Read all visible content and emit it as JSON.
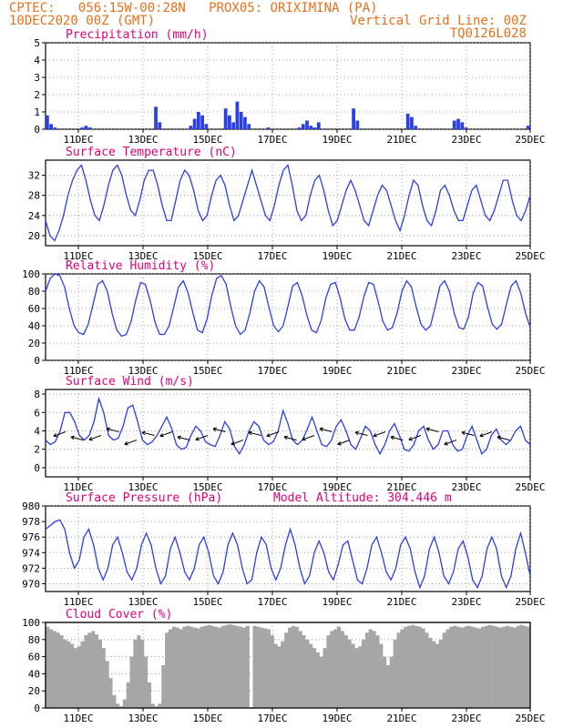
{
  "header": {
    "left_line1": "CPTEC:   056:15W-00:28N   PROX05: ORIXIMINA (PA)",
    "left_line2": "10DEC2020 00Z (GMT)",
    "right_line1": "Vertical Grid Line: 00Z",
    "right_line2": "TQ0126L028"
  },
  "x_ticks": [
    "11DEC",
    "13DEC",
    "15DEC",
    "17DEC",
    "19DEC",
    "21DEC",
    "23DEC",
    "25DEC"
  ],
  "chart_data": [
    {
      "type": "bar",
      "title": "Precipitation (mm/h)",
      "ylim": [
        0,
        5
      ],
      "yticks": [
        0,
        1,
        2,
        3,
        4,
        5
      ],
      "color": "#2b3fe6",
      "values": [
        0.8,
        0.3,
        0.1,
        0,
        0,
        0,
        0,
        0,
        0,
        0.1,
        0.2,
        0.1,
        0,
        0,
        0,
        0,
        0,
        0,
        0,
        0,
        0,
        0,
        0,
        0,
        0,
        0,
        0,
        0,
        1.3,
        0.4,
        0,
        0,
        0,
        0,
        0,
        0,
        0,
        0.2,
        0.6,
        1.0,
        0.8,
        0.3,
        0,
        0,
        0,
        0,
        1.2,
        0.8,
        0.4,
        1.6,
        1.0,
        0.7,
        0.3,
        0,
        0,
        0,
        0,
        0.1,
        0,
        0,
        0,
        0,
        0,
        0,
        0,
        0.1,
        0.3,
        0.5,
        0.2,
        0.1,
        0.4,
        0,
        0,
        0,
        0,
        0,
        0,
        0,
        0,
        1.2,
        0.5,
        0,
        0,
        0,
        0,
        0,
        0,
        0,
        0,
        0,
        0,
        0,
        0,
        0.9,
        0.7,
        0.2,
        0,
        0,
        0,
        0,
        0,
        0,
        0,
        0,
        0,
        0.5,
        0.6,
        0.4,
        0.1,
        0,
        0,
        0,
        0,
        0,
        0,
        0,
        0,
        0,
        0,
        0,
        0,
        0,
        0,
        0,
        0.2
      ]
    },
    {
      "type": "line",
      "title": "Surface Temperature (nC)",
      "ylim": [
        18,
        35
      ],
      "yticks": [
        20,
        24,
        28,
        32
      ],
      "color": "#2b3fe6",
      "values": [
        23,
        20,
        19,
        21,
        24,
        28,
        31,
        33,
        34,
        31,
        27,
        24,
        23,
        26,
        30,
        33,
        34,
        32,
        28,
        25,
        24,
        27,
        31,
        33,
        33,
        30,
        26,
        23,
        23,
        27,
        31,
        33,
        32,
        29,
        25,
        23,
        24,
        28,
        31,
        32,
        30,
        26,
        23,
        24,
        27,
        30,
        33,
        30,
        27,
        24,
        23,
        26,
        30,
        33,
        34,
        30,
        25,
        23,
        24,
        28,
        31,
        32,
        29,
        25,
        22,
        23,
        26,
        29,
        31,
        29,
        26,
        23,
        22,
        25,
        28,
        30,
        29,
        26,
        23,
        21,
        24,
        28,
        31,
        30,
        26,
        23,
        22,
        25,
        29,
        30,
        28,
        25,
        23,
        23,
        26,
        29,
        30,
        27,
        24,
        23,
        25,
        28,
        31,
        31,
        27,
        24,
        23,
        25,
        28
      ]
    },
    {
      "type": "line",
      "title": "Relative Humidity (%)",
      "ylim": [
        0,
        100
      ],
      "yticks": [
        0,
        20,
        40,
        60,
        80,
        100
      ],
      "color": "#2b3fe6",
      "values": [
        80,
        95,
        100,
        98,
        85,
        60,
        40,
        32,
        30,
        42,
        65,
        88,
        92,
        80,
        55,
        35,
        28,
        30,
        45,
        70,
        90,
        88,
        70,
        45,
        30,
        30,
        40,
        62,
        85,
        92,
        78,
        55,
        35,
        32,
        48,
        75,
        95,
        98,
        88,
        62,
        40,
        30,
        35,
        55,
        80,
        92,
        85,
        62,
        40,
        33,
        40,
        62,
        86,
        90,
        75,
        52,
        35,
        32,
        46,
        72,
        88,
        90,
        72,
        48,
        35,
        35,
        50,
        74,
        90,
        88,
        68,
        45,
        35,
        38,
        55,
        80,
        92,
        85,
        62,
        42,
        35,
        40,
        62,
        86,
        92,
        80,
        55,
        38,
        36,
        50,
        78,
        90,
        86,
        62,
        42,
        36,
        42,
        65,
        86,
        92,
        78,
        55,
        38
      ]
    },
    {
      "type": "line",
      "title": "Surface Wind (m/s)",
      "ylim": [
        -1,
        8.5
      ],
      "yticks": [
        0,
        2,
        4,
        6,
        8
      ],
      "color": "#2b3fe6",
      "values": [
        3,
        2.5,
        2.8,
        4,
        6,
        6,
        5,
        3.5,
        3,
        3.5,
        5,
        7.5,
        6,
        3.5,
        3,
        3.2,
        4.5,
        6.5,
        6.8,
        5,
        3,
        2.5,
        2.8,
        3.5,
        4.5,
        5.5,
        4.3,
        2.5,
        2,
        2.2,
        3.5,
        4.5,
        4,
        2.8,
        2.5,
        2.3,
        3.5,
        5,
        4.2,
        2.3,
        1.5,
        2.5,
        4,
        5,
        4.5,
        3,
        2.5,
        2.8,
        4,
        6.2,
        4.8,
        3,
        2.5,
        3,
        4.2,
        5.5,
        4,
        2.5,
        2.3,
        3,
        4.5,
        5.2,
        4,
        2.5,
        2,
        3.2,
        4.5,
        4,
        2.5,
        1.5,
        2.5,
        4,
        4.8,
        3.5,
        2,
        1.8,
        2.5,
        4,
        4.5,
        3,
        2,
        2.5,
        4,
        4,
        2.5,
        1.8,
        2,
        3.5,
        4.5,
        3,
        1.5,
        2,
        3.5,
        4.2,
        3,
        2.5,
        3,
        4,
        4.5,
        3,
        2.5
      ]
    },
    {
      "type": "line",
      "title": "Surface Pressure (hPa)",
      "subtitle": "Model Altitude: 304.446 m",
      "ylim": [
        969,
        980
      ],
      "yticks": [
        970,
        972,
        974,
        976,
        978,
        980
      ],
      "color": "#2b3fe6",
      "values": [
        977,
        977.5,
        978,
        978.2,
        977,
        974,
        972,
        973,
        976,
        977,
        975,
        972,
        970.5,
        972,
        975,
        976,
        974,
        971.5,
        970.5,
        972,
        975,
        976.5,
        975,
        972,
        970,
        971,
        974.5,
        976,
        974,
        971.5,
        970.5,
        972,
        975,
        976,
        974,
        971,
        970,
        971.5,
        975,
        976.5,
        975,
        972,
        970,
        970.5,
        974,
        976,
        975,
        972,
        970.5,
        972,
        975,
        977,
        975,
        972,
        970,
        971,
        974,
        975.5,
        974,
        971.5,
        970.5,
        972.5,
        975,
        975.5,
        973,
        970.5,
        970,
        972,
        975,
        976,
        974,
        971.5,
        970.5,
        972,
        975,
        976,
        974.5,
        971.5,
        969.5,
        971,
        974.5,
        976,
        974,
        971,
        970,
        971.5,
        974.5,
        975.5,
        973.5,
        970.5,
        969.5,
        971,
        974.5,
        976,
        974.5,
        971,
        969.5,
        971,
        974.5,
        976.5,
        974,
        971
      ]
    },
    {
      "type": "area",
      "title": "Cloud Cover (%)",
      "ylim": [
        0,
        100
      ],
      "yticks": [
        0,
        20,
        40,
        60,
        80,
        100
      ],
      "color": "#a6a6a6",
      "values": [
        95,
        92,
        90,
        88,
        85,
        80,
        78,
        75,
        70,
        72,
        78,
        85,
        88,
        90,
        86,
        80,
        70,
        55,
        35,
        15,
        5,
        2,
        10,
        30,
        60,
        80,
        85,
        80,
        60,
        30,
        5,
        2,
        5,
        50,
        88,
        92,
        95,
        94,
        92,
        95,
        96,
        95,
        94,
        93,
        95,
        96,
        97,
        96,
        95,
        94,
        96,
        97,
        98,
        97,
        96,
        95,
        94,
        96,
        0,
        96,
        95,
        94,
        93,
        92,
        85,
        75,
        72,
        78,
        88,
        94,
        96,
        95,
        90,
        85,
        80,
        75,
        70,
        65,
        60,
        70,
        85,
        90,
        92,
        95,
        90,
        85,
        80,
        75,
        70,
        72,
        80,
        88,
        92,
        90,
        85,
        75,
        60,
        50,
        60,
        80,
        88,
        92,
        95,
        96,
        97,
        96,
        95,
        93,
        88,
        82,
        78,
        75,
        80,
        88,
        92,
        95,
        96,
        95,
        94,
        95,
        96,
        95,
        94,
        93,
        95,
        96,
        97,
        96,
        95,
        94,
        95,
        96,
        95,
        94,
        96,
        97,
        96,
        95
      ]
    }
  ]
}
